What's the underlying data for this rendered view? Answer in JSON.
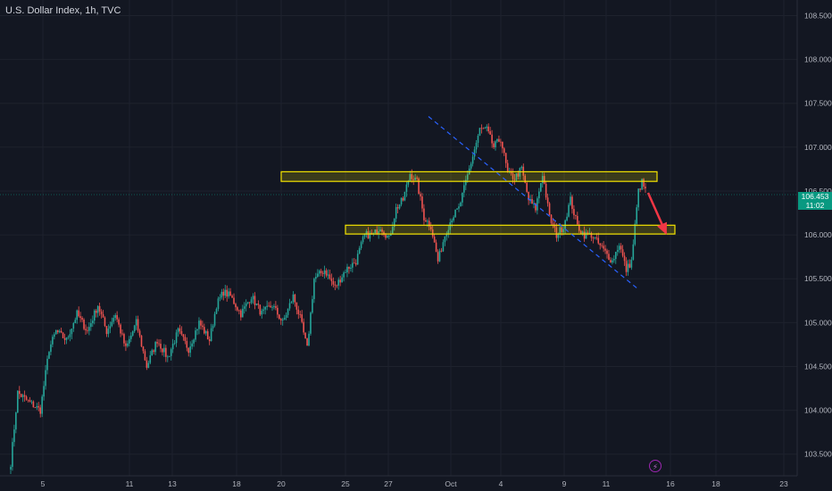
{
  "header": {
    "title": "U.S. Dollar Index, 1h, TVC"
  },
  "price_badge": {
    "price": "106.453",
    "countdown": "11:02"
  },
  "colors": {
    "background": "#131722",
    "grid": "#1e222d",
    "up": "#26a69a",
    "down": "#ef5350",
    "zone_stroke": "#f5e400",
    "trendline": "#2962ff",
    "arrow": "#f23645",
    "badge": "#089981"
  },
  "icons": {
    "alert": "lightning-icon"
  },
  "chart_data": {
    "type": "candlestick",
    "title": "U.S. Dollar Index, 1h, TVC",
    "y_ticks": [
      "108.500",
      "108.000",
      "107.500",
      "107.000",
      "106.500",
      "106.000",
      "105.500",
      "105.000",
      "104.500",
      "104.000",
      "103.500"
    ],
    "x_ticks": [
      "5",
      "11",
      "13",
      "18",
      "20",
      "25",
      "27",
      "Oct",
      "4",
      "9",
      "11",
      "16",
      "18",
      "23"
    ],
    "ylim": [
      103.35,
      108.65
    ],
    "grid": true,
    "anchors": [
      [
        0,
        103.4
      ],
      [
        4,
        104.2
      ],
      [
        10,
        104.1
      ],
      [
        17,
        104.0
      ],
      [
        22,
        104.7
      ],
      [
        26,
        104.9
      ],
      [
        32,
        104.8
      ],
      [
        38,
        105.1
      ],
      [
        44,
        104.9
      ],
      [
        50,
        105.2
      ],
      [
        55,
        104.9
      ],
      [
        60,
        105.1
      ],
      [
        66,
        104.7
      ],
      [
        72,
        105.0
      ],
      [
        78,
        104.5
      ],
      [
        84,
        104.8
      ],
      [
        90,
        104.6
      ],
      [
        96,
        104.9
      ],
      [
        102,
        104.7
      ],
      [
        108,
        105.0
      ],
      [
        114,
        104.8
      ],
      [
        118,
        105.2
      ],
      [
        122,
        105.35
      ],
      [
        126,
        105.3
      ],
      [
        132,
        105.1
      ],
      [
        138,
        105.3
      ],
      [
        144,
        105.1
      ],
      [
        150,
        105.2
      ],
      [
        156,
        105.0
      ],
      [
        162,
        105.3
      ],
      [
        166,
        105.05
      ],
      [
        170,
        104.7
      ],
      [
        174,
        105.5
      ],
      [
        180,
        105.6
      ],
      [
        186,
        105.4
      ],
      [
        192,
        105.6
      ],
      [
        198,
        105.7
      ],
      [
        203,
        106.0
      ],
      [
        208,
        106.0
      ],
      [
        212,
        106.1
      ],
      [
        217,
        105.95
      ],
      [
        221,
        106.3
      ],
      [
        225,
        106.4
      ],
      [
        229,
        106.7
      ],
      [
        233,
        106.6
      ],
      [
        237,
        106.2
      ],
      [
        241,
        106.1
      ],
      [
        245,
        105.7
      ],
      [
        249,
        106.0
      ],
      [
        253,
        106.2
      ],
      [
        257,
        106.3
      ],
      [
        261,
        106.6
      ],
      [
        265,
        106.9
      ],
      [
        269,
        107.2
      ],
      [
        273,
        107.2
      ],
      [
        277,
        107.0
      ],
      [
        281,
        107.1
      ],
      [
        285,
        106.7
      ],
      [
        289,
        106.65
      ],
      [
        293,
        106.75
      ],
      [
        297,
        106.4
      ],
      [
        301,
        106.3
      ],
      [
        305,
        106.7
      ],
      [
        309,
        106.2
      ],
      [
        313,
        106.0
      ],
      [
        317,
        106.1
      ],
      [
        321,
        106.4
      ],
      [
        325,
        106.1
      ],
      [
        329,
        106.0
      ],
      [
        333,
        106.0
      ],
      [
        337,
        105.9
      ],
      [
        341,
        105.8
      ],
      [
        345,
        105.7
      ],
      [
        349,
        105.9
      ],
      [
        353,
        105.6
      ],
      [
        356,
        105.7
      ],
      [
        358,
        106.1
      ],
      [
        360,
        106.5
      ],
      [
        362,
        106.6
      ],
      [
        364,
        106.5
      ]
    ],
    "zones": [
      {
        "date_from": "Sep 20",
        "date_to": "Oct 11",
        "price_from": 106.61,
        "price_to": 106.72
      },
      {
        "date_from": "Sep 25",
        "date_to": "Oct 15",
        "price_from": 106.01,
        "price_to": 106.11
      }
    ],
    "trendline": {
      "from": {
        "date": "Sep 29",
        "price": 107.35
      },
      "to": {
        "date": "Oct 14",
        "price": 105.38
      }
    },
    "arrow": {
      "from": {
        "date": "Oct 14",
        "price": 106.48
      },
      "to": {
        "date": "Oct 15",
        "price": 106.02
      }
    }
  }
}
